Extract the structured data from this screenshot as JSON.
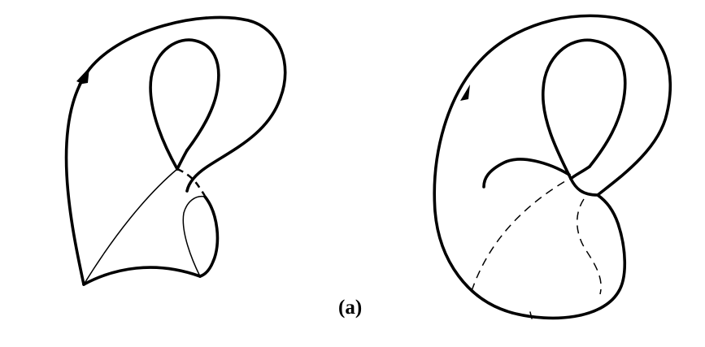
{
  "figure": {
    "caption": "(a)"
  }
}
